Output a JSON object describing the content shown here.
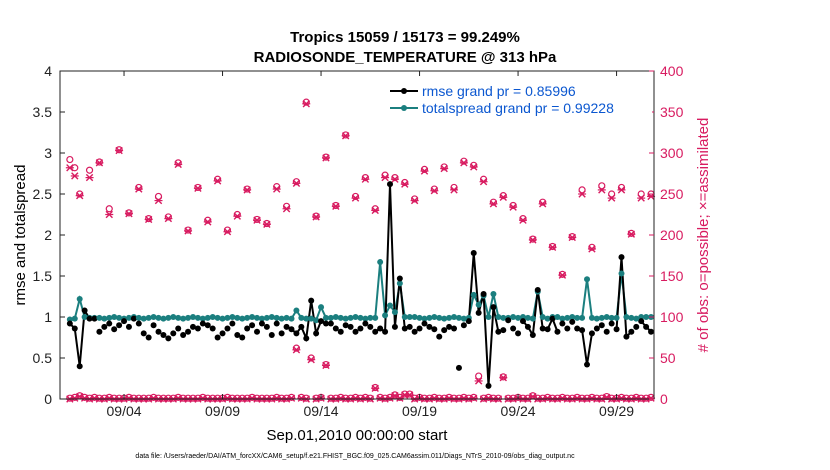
{
  "chart_data": {
    "type": "line",
    "title_line1": "Tropics 15059 / 15173 = 99.249%",
    "title_line2": "RADIOSONDE_TEMPERATURE @ 313 hPa",
    "xlabel": "Sep.01,2010 00:00:00 start",
    "ylabel_left": "rmse and totalspread",
    "ylabel_right": "# of obs: o=possible; ×=assimilated",
    "footnote": "data file: /Users/raeder/DAI/ATM_forcXX/CAM6_setup/f.e21.FHIST_BGC.f09_025.CAM6assim.011/Diags_NTrS_2010-09/obs_diag_output.nc",
    "xlim": [
      0.75,
      30.9
    ],
    "ylim_left": [
      0,
      4
    ],
    "ylim_right": [
      0,
      400
    ],
    "x_ticks": [
      {
        "value": 4,
        "label": "09/04"
      },
      {
        "value": 9,
        "label": "09/09"
      },
      {
        "value": 14,
        "label": "09/14"
      },
      {
        "value": 19,
        "label": "09/19"
      },
      {
        "value": 24,
        "label": "09/24"
      },
      {
        "value": 29,
        "label": "09/29"
      }
    ],
    "y_ticks_left": [
      {
        "value": 0,
        "label": "0"
      },
      {
        "value": 0.5,
        "label": "0.5"
      },
      {
        "value": 1,
        "label": "1"
      },
      {
        "value": 1.5,
        "label": "1.5"
      },
      {
        "value": 2,
        "label": "2"
      },
      {
        "value": 2.5,
        "label": "2.5"
      },
      {
        "value": 3,
        "label": "3"
      },
      {
        "value": 3.5,
        "label": "3.5"
      },
      {
        "value": 4,
        "label": "4"
      }
    ],
    "y_ticks_right": [
      {
        "value": 0,
        "label": "0"
      },
      {
        "value": 50,
        "label": "50"
      },
      {
        "value": 100,
        "label": "100"
      },
      {
        "value": 150,
        "label": "150"
      },
      {
        "value": 200,
        "label": "200"
      },
      {
        "value": 250,
        "label": "250"
      },
      {
        "value": 300,
        "label": "300"
      },
      {
        "value": 350,
        "label": "350"
      },
      {
        "value": 400,
        "label": "400"
      }
    ],
    "legend": [
      {
        "name": "rmse grand pr = 0.85996",
        "color": "#000000"
      },
      {
        "name": "totalspread grand pr = 0.99228",
        "color": "#1b7f7f"
      }
    ],
    "connected_segments": [
      {
        "x": [
          1.25,
          1.5,
          1.75,
          2.0,
          2.25,
          2.5
        ],
        "rmse": [
          0.92,
          0.86,
          0.4,
          1.08,
          0.98,
          0.98
        ],
        "spread": [
          0.97,
          0.98,
          1.22,
          1.0,
          0.99,
          0.99
        ]
      },
      {
        "x": [
          12.5,
          12.75,
          13.0,
          13.25,
          13.5,
          13.75,
          14.0,
          14.25,
          14.5
        ],
        "rmse": [
          0.85,
          0.8,
          0.88,
          0.74,
          1.2,
          0.8,
          0.95,
          0.92,
          0.92
        ],
        "spread": [
          0.98,
          1.08,
          0.99,
          0.98,
          0.98,
          0.96,
          1.12,
          0.99,
          0.99
        ]
      },
      {
        "x": [
          16.75,
          17.0,
          17.25,
          17.5,
          17.75,
          18.0,
          18.25,
          18.5
        ],
        "rmse": [
          0.82,
          0.86,
          0.82,
          2.62,
          0.88,
          1.47,
          0.86,
          0.88
        ],
        "spread": [
          0.99,
          1.67,
          1.02,
          1.14,
          1.06,
          1.41,
          1.0,
          1.0
        ]
      },
      {
        "x": [
          21.5,
          21.75,
          22.0,
          22.25,
          22.5,
          22.75,
          23.0,
          23.25
        ],
        "rmse": [
          0.95,
          1.78,
          1.05,
          1.28,
          0.16,
          1.12,
          0.82,
          0.84
        ],
        "spread": [
          0.99,
          1.27,
          1.15,
          1.26,
          1.0,
          1.28,
          1.0,
          0.99
        ]
      },
      {
        "x": [
          24.25,
          24.5,
          24.75,
          25.0,
          25.25,
          25.5,
          25.75,
          26.0
        ],
        "rmse": [
          0.95,
          0.88,
          0.78,
          1.33,
          0.86,
          0.85,
          0.98,
          0.82
        ],
        "spread": [
          1.0,
          0.99,
          0.98,
          1.31,
          1.0,
          0.98,
          1.0,
          1.0
        ]
      },
      {
        "x": [
          27.25,
          27.5,
          27.75
        ],
        "rmse": [
          0.84,
          0.42,
          0.8
        ],
        "spread": [
          0.99,
          1.46,
          0.99
        ]
      },
      {
        "x": [
          29.0,
          29.25,
          29.5,
          29.75
        ],
        "rmse": [
          0.85,
          1.73,
          0.76,
          0.82
        ],
        "spread": [
          0.99,
          1.53,
          1.0,
          0.99
        ]
      },
      {
        "x": [
          30.25,
          30.5,
          30.75
        ],
        "rmse": [
          0.95,
          0.88,
          0.82
        ],
        "spread": [
          1.0,
          1.0,
          1.0
        ]
      }
    ],
    "isolated_points": {
      "x": [
        2.75,
        3.0,
        3.25,
        3.5,
        3.75,
        4.0,
        4.25,
        4.5,
        4.75,
        5.0,
        5.25,
        5.5,
        5.75,
        6.0,
        6.25,
        6.5,
        6.75,
        7.0,
        7.25,
        7.5,
        7.75,
        8.0,
        8.25,
        8.5,
        8.75,
        9.0,
        9.25,
        9.5,
        9.75,
        10.0,
        10.25,
        10.5,
        10.75,
        11.0,
        11.25,
        11.5,
        11.75,
        12.0,
        12.25,
        14.75,
        15.0,
        15.25,
        15.5,
        15.75,
        16.0,
        16.25,
        16.5,
        18.75,
        19.0,
        19.25,
        19.5,
        19.75,
        20.0,
        20.25,
        20.5,
        20.75,
        21.0,
        21.25,
        23.5,
        23.75,
        24.0,
        26.25,
        26.5,
        26.75,
        27.0,
        28.0,
        28.25,
        28.5,
        28.75,
        30.0
      ],
      "rmse": [
        0.82,
        0.88,
        0.92,
        0.85,
        0.9,
        0.95,
        0.88,
        0.98,
        0.92,
        0.8,
        0.75,
        0.9,
        0.82,
        0.78,
        0.74,
        0.8,
        0.86,
        0.78,
        0.82,
        0.88,
        0.86,
        0.92,
        0.9,
        0.86,
        0.75,
        0.8,
        0.86,
        0.92,
        0.78,
        0.75,
        0.86,
        0.9,
        0.82,
        0.92,
        0.88,
        0.78,
        0.92,
        0.8,
        0.88,
        0.86,
        0.82,
        0.9,
        0.88,
        0.82,
        0.86,
        0.92,
        0.88,
        0.82,
        0.86,
        0.92,
        0.88,
        0.85,
        0.76,
        0.84,
        0.88,
        0.86,
        0.38,
        0.9,
        0.96,
        0.86,
        0.8,
        0.92,
        0.86,
        0.94,
        0.86,
        0.86,
        0.9,
        0.82,
        0.92,
        0.88
      ],
      "spread": [
        0.99,
        0.98,
        0.99,
        1.0,
        0.99,
        0.98,
        0.99,
        1.0,
        0.99,
        0.98,
        0.99,
        1.0,
        0.99,
        0.98,
        0.99,
        1.0,
        0.99,
        0.98,
        0.99,
        1.0,
        0.99,
        0.98,
        0.99,
        1.0,
        0.99,
        0.98,
        0.99,
        1.0,
        0.99,
        0.98,
        0.99,
        1.0,
        0.99,
        0.98,
        0.99,
        1.0,
        0.99,
        0.98,
        0.99,
        1.0,
        0.99,
        0.98,
        0.99,
        1.0,
        0.99,
        0.98,
        0.99,
        1.0,
        0.99,
        0.98,
        0.99,
        1.0,
        0.99,
        0.98,
        0.99,
        1.0,
        0.99,
        0.98,
        0.99,
        1.0,
        0.99,
        0.98,
        0.99,
        1.0,
        0.99,
        0.98,
        0.99,
        1.0,
        0.99,
        0.98
      ]
    },
    "obs_top": {
      "x": [
        1.25,
        1.5,
        1.75,
        2.25,
        2.75,
        3.25,
        3.75,
        4.25,
        4.75,
        5.25,
        5.75,
        6.25,
        6.75,
        7.25,
        7.75,
        8.25,
        8.75,
        9.25,
        9.75,
        10.25,
        10.75,
        11.25,
        11.75,
        12.25,
        12.75,
        13.25,
        13.75,
        14.25,
        14.75,
        15.25,
        15.75,
        16.25,
        16.75,
        17.25,
        17.75,
        18.25,
        18.75,
        19.25,
        19.75,
        20.25,
        20.75,
        21.25,
        21.75,
        22.25,
        22.75,
        23.25,
        23.75,
        24.25,
        24.75,
        25.25,
        25.75,
        26.25,
        26.75,
        27.25,
        27.75,
        28.25,
        28.75,
        29.25,
        29.75,
        30.25,
        30.75
      ],
      "possible": [
        292,
        282,
        250,
        279,
        289,
        232,
        304,
        227,
        258,
        220,
        247,
        222,
        288,
        206,
        258,
        218,
        268,
        206,
        225,
        256,
        219,
        214,
        259,
        235,
        265,
        362,
        223,
        295,
        236,
        322,
        247,
        270,
        232,
        273,
        270,
        264,
        244,
        280,
        256,
        283,
        258,
        290,
        285,
        268,
        240,
        248,
        236,
        220,
        195,
        240,
        186,
        152,
        198,
        255,
        185,
        260,
        250,
        258,
        202,
        250,
        250
      ],
      "assimilated": [
        282,
        272,
        248,
        270,
        288,
        225,
        303,
        226,
        256,
        219,
        242,
        220,
        286,
        205,
        257,
        216,
        266,
        204,
        223,
        255,
        218,
        213,
        256,
        232,
        263,
        360,
        222,
        294,
        235,
        321,
        245,
        268,
        230,
        270,
        268,
        262,
        242,
        278,
        254,
        281,
        255,
        288,
        283,
        265,
        238,
        246,
        234,
        218,
        194,
        238,
        185,
        151,
        197,
        250,
        183,
        255,
        245,
        255,
        201,
        245,
        247
      ]
    },
    "obs_bottom": {
      "x": [
        1.25,
        1.5,
        1.75,
        2.0,
        2.25,
        2.5,
        2.75,
        3.0,
        3.25,
        3.5,
        3.75,
        4.0,
        4.25,
        4.5,
        4.75,
        5.0,
        5.25,
        5.5,
        5.75,
        6.0,
        6.25,
        6.5,
        6.75,
        7.0,
        7.25,
        7.5,
        7.75,
        8.0,
        8.25,
        8.5,
        8.75,
        9.0,
        9.25,
        9.5,
        9.75,
        10.0,
        10.25,
        10.5,
        10.75,
        11.0,
        11.25,
        11.5,
        11.75,
        12.0,
        12.25,
        12.5,
        12.75,
        13.0,
        13.25,
        13.5,
        13.75,
        14.0,
        14.25,
        14.5,
        14.75,
        15.0,
        15.25,
        15.5,
        15.75,
        16.0,
        16.25,
        16.5,
        16.75,
        17.0,
        17.25,
        17.5,
        17.75,
        18.0,
        18.25,
        18.5,
        18.75,
        19.0,
        19.25,
        19.5,
        19.75,
        20.0,
        20.25,
        20.5,
        20.75,
        21.0,
        21.25,
        21.5,
        21.75,
        22.0,
        22.25,
        22.5,
        22.75,
        23.0,
        23.25,
        23.5,
        23.75,
        24.0,
        24.25,
        24.5,
        24.75,
        25.0,
        25.25,
        25.5,
        25.75,
        26.0,
        26.25,
        26.5,
        26.75,
        27.0,
        27.25,
        27.5,
        27.75,
        28.0,
        28.25,
        28.5,
        28.75,
        29.0,
        29.25,
        29.5,
        29.75,
        30.0,
        30.25,
        30.5,
        30.75
      ],
      "possible": [
        1,
        2,
        4,
        2,
        1,
        2,
        1,
        1,
        2,
        1,
        1,
        1,
        2,
        1,
        1,
        1,
        1,
        2,
        1,
        1,
        1,
        1,
        2,
        1,
        1,
        1,
        1,
        2,
        1,
        1,
        1,
        1,
        2,
        1,
        1,
        1,
        1,
        2,
        1,
        1,
        1,
        1,
        2,
        1,
        1,
        2,
        62,
        2,
        1,
        50,
        1,
        2,
        42,
        1,
        1,
        2,
        1,
        1,
        2,
        1,
        2,
        1,
        14,
        2,
        1,
        2,
        5,
        2,
        6,
        6,
        1,
        2,
        1,
        1,
        2,
        1,
        1,
        2,
        1,
        1,
        2,
        1,
        2,
        28,
        1,
        2,
        1,
        1,
        27,
        1,
        1,
        2,
        1,
        1,
        4,
        1,
        1,
        2,
        1,
        1,
        2,
        1,
        1,
        2,
        1,
        1,
        2,
        1,
        1,
        3,
        1,
        1,
        2,
        1,
        1,
        2,
        1,
        1,
        2
      ],
      "assimilated": [
        0,
        1,
        3,
        1,
        0,
        1,
        0,
        0,
        1,
        0,
        0,
        0,
        1,
        0,
        0,
        0,
        0,
        1,
        0,
        0,
        0,
        0,
        1,
        0,
        0,
        0,
        0,
        1,
        0,
        0,
        0,
        0,
        1,
        0,
        0,
        0,
        0,
        1,
        0,
        0,
        0,
        0,
        1,
        0,
        0,
        1,
        60,
        1,
        0,
        48,
        0,
        1,
        41,
        0,
        0,
        1,
        0,
        0,
        1,
        0,
        1,
        0,
        13,
        1,
        0,
        1,
        4,
        1,
        5,
        5,
        0,
        1,
        0,
        0,
        1,
        0,
        0,
        1,
        0,
        0,
        1,
        0,
        1,
        22,
        0,
        1,
        0,
        0,
        26,
        0,
        0,
        1,
        0,
        0,
        3,
        0,
        0,
        1,
        0,
        0,
        1,
        0,
        0,
        1,
        0,
        0,
        1,
        0,
        0,
        2,
        0,
        0,
        1,
        0,
        0,
        1,
        0,
        0,
        1
      ]
    },
    "colors": {
      "rmse": "#000000",
      "spread": "#1b7f7f",
      "obs": "#d81b60",
      "legend_text": "#0b57d0",
      "axis": "#222222"
    }
  }
}
